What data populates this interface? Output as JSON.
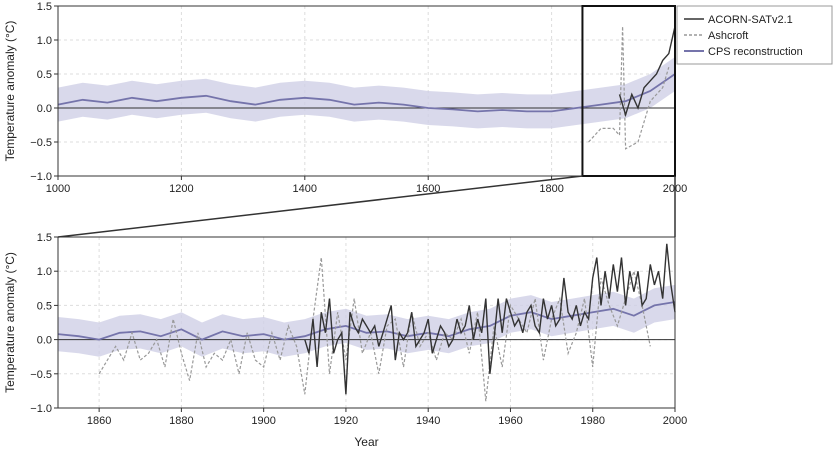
{
  "colors": {
    "acorn": "#333333",
    "ashcroft": "#999999",
    "cps": "#7574ab",
    "cps_band": "#cfcfe6",
    "grid": "#dddddd"
  },
  "legend": {
    "acorn": "ACORN-SATv2.1",
    "ashcroft": "Ashcroft",
    "cps": "CPS reconstruction"
  },
  "chart_data": [
    {
      "type": "line",
      "panel": "top",
      "ylabel": "Temperature anomaly (°C)",
      "xlabel": "",
      "xlim": [
        1000,
        2000
      ],
      "ylim": [
        -1.0,
        1.5
      ],
      "xticks": [
        "1000",
        "1200",
        "1400",
        "1600",
        "1800",
        "2000"
      ],
      "yticks": [
        "1.5",
        "1.0",
        "0.5",
        "0.0",
        "−0.5",
        "−1.0"
      ],
      "grid": true,
      "legend_position": "outside-right",
      "zoom_box": [
        1850,
        2000
      ],
      "series": [
        {
          "name": "CPS reconstruction",
          "x": [
            1000,
            1040,
            1080,
            1120,
            1160,
            1200,
            1240,
            1280,
            1320,
            1360,
            1400,
            1440,
            1480,
            1520,
            1560,
            1600,
            1640,
            1680,
            1720,
            1760,
            1800,
            1840,
            1880,
            1920,
            1960,
            2000
          ],
          "y": [
            0.05,
            0.12,
            0.08,
            0.15,
            0.1,
            0.15,
            0.18,
            0.1,
            0.05,
            0.12,
            0.15,
            0.12,
            0.05,
            0.08,
            0.05,
            0.0,
            -0.02,
            -0.05,
            -0.03,
            -0.05,
            -0.05,
            0.0,
            0.05,
            0.1,
            0.25,
            0.5
          ],
          "band": 0.25
        },
        {
          "name": "ACORN-SATv2.1",
          "x": [
            1910,
            1920,
            1930,
            1940,
            1950,
            1960,
            1970,
            1980,
            1990,
            2000
          ],
          "y": [
            0.2,
            -0.1,
            0.2,
            0.0,
            0.3,
            0.4,
            0.5,
            0.7,
            0.8,
            1.2
          ]
        },
        {
          "name": "Ashcroft",
          "x": [
            1860,
            1880,
            1900,
            1910,
            1915,
            1920,
            1940,
            1960,
            1980,
            1990
          ],
          "y": [
            -0.5,
            -0.3,
            -0.3,
            -0.4,
            1.2,
            -0.6,
            -0.5,
            0.1,
            0.3,
            0.6
          ]
        }
      ]
    },
    {
      "type": "line",
      "panel": "bottom",
      "ylabel": "Temperature anomaly (°C)",
      "xlabel": "Year",
      "xlim": [
        1850,
        2000
      ],
      "ylim": [
        -1.0,
        1.5
      ],
      "xticks": [
        "1860",
        "1880",
        "1900",
        "1920",
        "1940",
        "1960",
        "1980",
        "2000"
      ],
      "yticks": [
        "1.5",
        "1.0",
        "0.5",
        "0.0",
        "−0.5",
        "−1.0"
      ],
      "grid": true,
      "series": [
        {
          "name": "CPS reconstruction",
          "x": [
            1850,
            1855,
            1860,
            1865,
            1870,
            1875,
            1880,
            1885,
            1890,
            1895,
            1900,
            1905,
            1910,
            1915,
            1920,
            1925,
            1930,
            1935,
            1940,
            1945,
            1950,
            1955,
            1960,
            1965,
            1970,
            1975,
            1980,
            1985,
            1990,
            1995,
            2000
          ],
          "y": [
            0.08,
            0.05,
            0.0,
            0.1,
            0.12,
            0.05,
            0.15,
            0.0,
            0.12,
            0.05,
            0.08,
            0.0,
            0.05,
            0.15,
            0.2,
            0.1,
            0.12,
            0.05,
            0.1,
            0.05,
            0.15,
            0.2,
            0.35,
            0.4,
            0.3,
            0.35,
            0.4,
            0.45,
            0.35,
            0.5,
            0.55
          ],
          "band": 0.25
        },
        {
          "name": "ACORN-SATv2.1",
          "x": [
            1910,
            1911,
            1912,
            1913,
            1914,
            1915,
            1916,
            1917,
            1918,
            1919,
            1920,
            1921,
            1922,
            1923,
            1924,
            1925,
            1926,
            1927,
            1928,
            1929,
            1930,
            1931,
            1932,
            1933,
            1934,
            1935,
            1936,
            1937,
            1938,
            1939,
            1940,
            1941,
            1942,
            1943,
            1944,
            1945,
            1946,
            1947,
            1948,
            1949,
            1950,
            1951,
            1952,
            1953,
            1954,
            1955,
            1956,
            1957,
            1958,
            1959,
            1960,
            1961,
            1962,
            1963,
            1964,
            1965,
            1966,
            1967,
            1968,
            1969,
            1970,
            1971,
            1972,
            1973,
            1974,
            1975,
            1976,
            1977,
            1978,
            1979,
            1980,
            1981,
            1982,
            1983,
            1984,
            1985,
            1986,
            1987,
            1988,
            1989,
            1990,
            1991,
            1992,
            1993,
            1994,
            1995,
            1996,
            1997,
            1998,
            1999,
            2000
          ],
          "y": [
            0.0,
            -0.2,
            0.3,
            -0.4,
            0.4,
            0.1,
            0.6,
            -0.2,
            0.0,
            0.1,
            -0.8,
            0.4,
            0.2,
            0.1,
            0.3,
            0.2,
            0.1,
            0.2,
            -0.1,
            0.1,
            0.3,
            0.5,
            -0.3,
            0.1,
            0.0,
            0.1,
            0.4,
            -0.1,
            0.0,
            0.1,
            0.3,
            -0.2,
            0.0,
            0.2,
            0.1,
            -0.1,
            0.0,
            0.3,
            0.1,
            0.2,
            0.5,
            0.0,
            0.3,
            0.1,
            0.6,
            -0.5,
            0.0,
            0.6,
            0.1,
            0.6,
            0.4,
            0.2,
            0.3,
            0.1,
            0.4,
            0.5,
            0.2,
            0.1,
            0.6,
            0.3,
            0.5,
            0.2,
            0.3,
            0.9,
            0.4,
            0.3,
            0.5,
            0.2,
            0.4,
            0.3,
            0.9,
            1.2,
            0.5,
            1.0,
            0.6,
            1.1,
            0.7,
            1.2,
            0.5,
            1.0,
            0.7,
            1.0,
            0.5,
            0.6,
            1.1,
            0.8,
            1.0,
            0.6,
            1.4,
            0.8,
            0.4
          ]
        },
        {
          "name": "Ashcroft",
          "x": [
            1860,
            1862,
            1864,
            1866,
            1868,
            1870,
            1872,
            1874,
            1876,
            1878,
            1880,
            1882,
            1884,
            1886,
            1888,
            1890,
            1892,
            1894,
            1896,
            1898,
            1900,
            1902,
            1904,
            1906,
            1908,
            1910,
            1912,
            1914,
            1916,
            1918,
            1920,
            1922,
            1924,
            1926,
            1928,
            1930,
            1932,
            1934,
            1936,
            1938,
            1940,
            1942,
            1944,
            1946,
            1948,
            1950,
            1952,
            1954,
            1956,
            1958,
            1960,
            1962,
            1964,
            1966,
            1968,
            1970,
            1972,
            1974,
            1976,
            1978,
            1980,
            1982,
            1984,
            1986,
            1988,
            1990,
            1992,
            1994
          ],
          "y": [
            -0.5,
            -0.3,
            -0.1,
            -0.3,
            0.1,
            -0.3,
            -0.2,
            0.0,
            -0.4,
            0.3,
            -0.2,
            -0.6,
            0.1,
            -0.4,
            -0.2,
            -0.3,
            0.0,
            -0.5,
            0.1,
            -0.3,
            -0.4,
            0.1,
            -0.3,
            0.2,
            -0.1,
            -0.8,
            0.3,
            1.2,
            -0.5,
            0.4,
            -0.3,
            0.6,
            -0.2,
            0.1,
            -0.5,
            0.2,
            0.3,
            -0.4,
            0.4,
            -0.1,
            0.1,
            -0.3,
            0.1,
            0.0,
            0.3,
            -0.2,
            0.4,
            -0.9,
            0.2,
            -0.4,
            0.5,
            0.3,
            0.1,
            0.6,
            -0.3,
            0.3,
            0.6,
            -0.2,
            0.1,
            0.6,
            -0.4,
            0.9,
            0.5,
            0.2,
            0.6,
            1.0,
            0.5,
            -0.1
          ]
        }
      ]
    }
  ]
}
